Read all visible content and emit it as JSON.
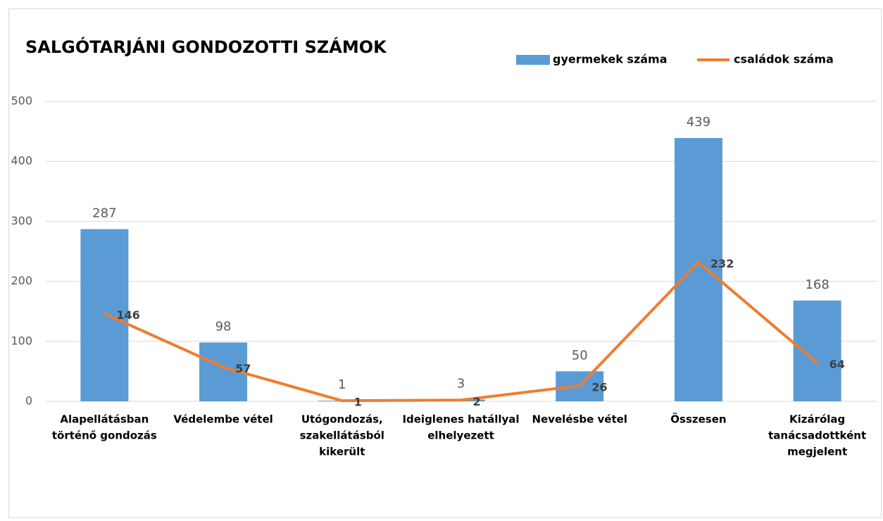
{
  "chart_data": {
    "type": "bar",
    "title": "SALGÓTARJÁNI GONDOZOTTI SZÁMOK",
    "categories": [
      [
        "Alapellátásban",
        "történő gondozás"
      ],
      [
        "Védelembe vétel"
      ],
      [
        "Utógondozás,",
        "szakellátásból",
        "kikerült"
      ],
      [
        "Ideiglenes hatállyal",
        "elhelyezett"
      ],
      [
        "Nevelésbe vétel"
      ],
      [
        "Összesen"
      ],
      [
        "Kizárólag",
        "tanácsadottként",
        "megjelent"
      ]
    ],
    "series": [
      {
        "name": "gyermekek száma",
        "type": "bar",
        "color": "#5b9bd5",
        "values": [
          287,
          98,
          1,
          3,
          50,
          439,
          168
        ]
      },
      {
        "name": "családok száma",
        "type": "line",
        "color": "#ed7d31",
        "values": [
          146,
          57,
          1,
          2,
          26,
          232,
          64
        ]
      }
    ],
    "ylim": [
      0,
      500
    ],
    "yticks": [
      0,
      100,
      200,
      300,
      400,
      500
    ],
    "grid": true,
    "legend": "top-right"
  }
}
